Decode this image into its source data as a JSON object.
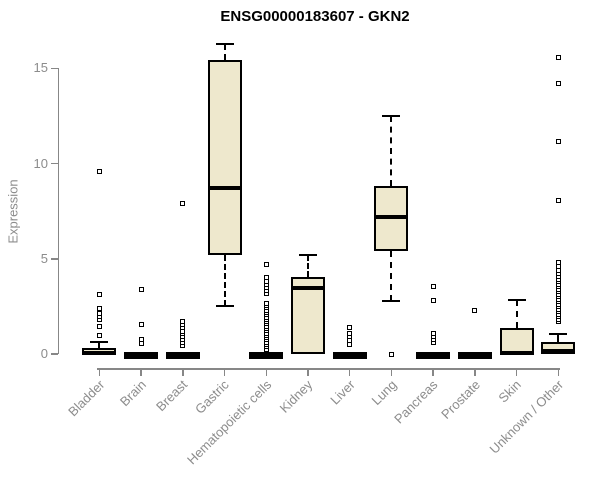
{
  "title": "ENSG00000183607 - GKN2",
  "chart_data": {
    "type": "boxplot",
    "title": "ENSG00000183607 - GKN2",
    "xlabel": "",
    "ylabel": "Expression",
    "ylim": [
      -0.8,
      16.9
    ],
    "yticks": [
      0,
      5,
      10,
      15
    ],
    "grid": false,
    "legend": "none",
    "categories": [
      "Bladder",
      "Brain",
      "Breast",
      "Gastric",
      "Hematopoietic cells",
      "Kidney",
      "Liver",
      "Lung",
      "Pancreas",
      "Prostate",
      "Skin",
      "Unknown / Other"
    ],
    "series": [
      {
        "name": "Bladder",
        "low": 0,
        "q1": 0,
        "med": 0.07,
        "q3": 0.33,
        "high": 0.62,
        "outliers": [
          0.98,
          1.45,
          1.8,
          1.95,
          2.15,
          2.4,
          3.1,
          9.6
        ]
      },
      {
        "name": "Brain",
        "low": 0,
        "q1": 0,
        "med": 0,
        "q3": 0,
        "high": 0,
        "outliers": [
          0.55,
          0.75,
          1.55,
          3.4
        ]
      },
      {
        "name": "Breast",
        "low": 0,
        "q1": 0,
        "med": 0,
        "q3": 0,
        "high": 0,
        "outliers": [
          0.45,
          0.6,
          0.75,
          0.9,
          1.05,
          1.2,
          1.4,
          1.55,
          1.7,
          7.9
        ]
      },
      {
        "name": "Gastric",
        "low": 2.5,
        "q1": 5.2,
        "med": 8.7,
        "q3": 15.45,
        "high": 16.25,
        "outliers": []
      },
      {
        "name": "Hematopoietic cells",
        "low": 0,
        "q1": 0,
        "med": 0,
        "q3": 0,
        "high": 0,
        "outliers": [
          0.26,
          0.38,
          0.5,
          0.62,
          0.74,
          0.86,
          0.98,
          1.1,
          1.22,
          1.34,
          1.46,
          1.58,
          1.7,
          1.82,
          1.94,
          2.06,
          2.18,
          2.3,
          2.42,
          2.54,
          2.66,
          3.2,
          3.35,
          3.5,
          3.65,
          3.8,
          4.0,
          4.7
        ]
      },
      {
        "name": "Kidney",
        "low": 0,
        "q1": 0,
        "med": 3.45,
        "q3": 4.05,
        "high": 5.2,
        "outliers": []
      },
      {
        "name": "Liver",
        "low": 0,
        "q1": 0,
        "med": 0,
        "q3": 0,
        "high": 0,
        "outliers": [
          0.5,
          0.7,
          0.9,
          1.1,
          1.4
        ]
      },
      {
        "name": "Lung",
        "low": 2.8,
        "q1": 5.4,
        "med": 7.2,
        "q3": 8.8,
        "high": 12.5,
        "outliers": [
          0.0
        ]
      },
      {
        "name": "Pancreas",
        "low": 0,
        "q1": 0,
        "med": 0,
        "q3": 0,
        "high": 0,
        "outliers": [
          0.6,
          0.75,
          0.9,
          1.1,
          2.8,
          3.55
        ]
      },
      {
        "name": "Prostate",
        "low": 0,
        "q1": 0,
        "med": 0,
        "q3": 0,
        "high": 0,
        "outliers": [
          2.3
        ]
      },
      {
        "name": "Skin",
        "low": 0,
        "q1": 0,
        "med": 0.05,
        "q3": 1.35,
        "high": 2.85,
        "outliers": []
      },
      {
        "name": "Unknown / Other",
        "low": 0,
        "q1": 0,
        "med": 0.15,
        "q3": 0.65,
        "high": 1.05,
        "outliers": [
          1.7,
          1.83,
          1.96,
          2.09,
          2.22,
          2.35,
          2.48,
          2.61,
          2.74,
          2.87,
          3.0,
          3.13,
          3.26,
          3.39,
          3.52,
          3.65,
          3.78,
          3.91,
          4.05,
          4.2,
          4.4,
          4.6,
          4.8,
          8.05,
          11.15,
          14.2,
          15.55
        ]
      }
    ],
    "colors": {
      "box_fill": "#EEE8CD",
      "box_border": "#000000",
      "median": "#000000",
      "whisker": "#000000",
      "outlier_border": "#000000",
      "axis": "#878787",
      "tick_label": "#8c8c8c",
      "title": "#000000",
      "background": "#ffffff"
    }
  }
}
